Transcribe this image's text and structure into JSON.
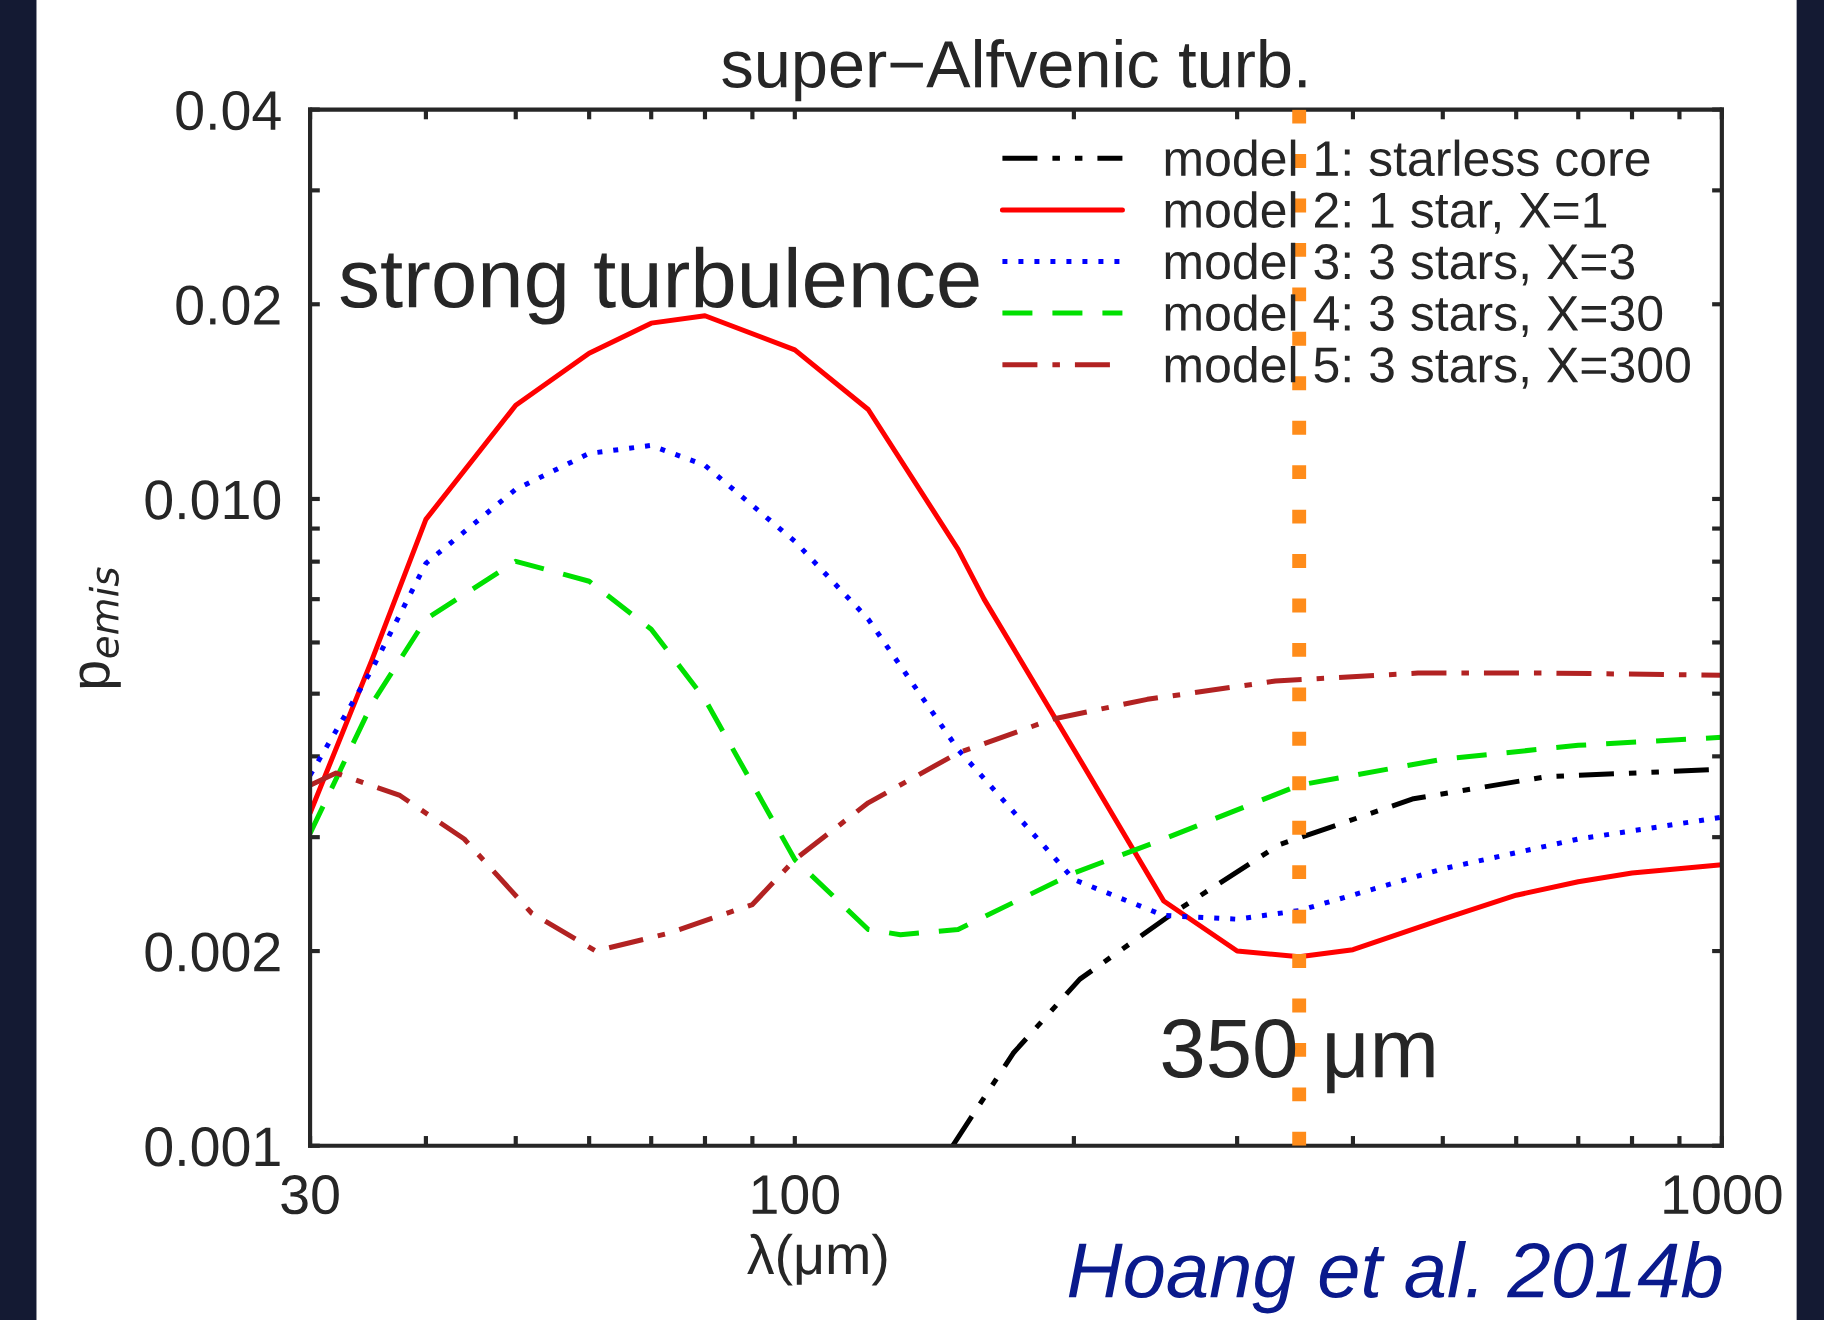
{
  "chart_data": {
    "type": "line",
    "title": "super−Alfvenic turb.",
    "xlabel": "λ(μm)",
    "ylabel": "p$_{emis}$",
    "log": "xy",
    "grid": false,
    "legend": "top right",
    "annotations": [
      "strong turbulence",
      "Hoang et al. 2014b"
    ],
    "xlim": [
      30,
      1000
    ],
    "ylim": [
      0.001,
      0.04
    ],
    "xticks": [
      30,
      {
        "value": 40,
        "label": null
      },
      {
        "value": 50,
        "label": null
      },
      {
        "value": 60,
        "label": null
      },
      {
        "value": 70,
        "label": null
      },
      {
        "value": 80,
        "label": null
      },
      {
        "value": 90,
        "label": null
      },
      100,
      {
        "value": 200,
        "label": null
      },
      {
        "value": 300,
        "label": null
      },
      {
        "value": 400,
        "label": null
      },
      {
        "value": 500,
        "label": null
      },
      {
        "value": 600,
        "label": null
      },
      {
        "value": 700,
        "label": null
      },
      {
        "value": 800,
        "label": null
      },
      {
        "value": 900,
        "label": null
      },
      1000
    ],
    "yticks": [
      0.001,
      0.002,
      {
        "value": 0.003,
        "label": null
      },
      {
        "value": 0.004,
        "label": null
      },
      {
        "value": 0.005,
        "label": null
      },
      {
        "value": 0.006,
        "label": null
      },
      {
        "value": 0.007,
        "label": null
      },
      {
        "value": 0.008,
        "label": null
      },
      {
        "value": 0.009,
        "label": null
      },
      {
        "value": 0.01,
        "label": "0.010"
      },
      0.02,
      {
        "value": 0.03,
        "label": null
      },
      0.04
    ],
    "ref_lines": [
      {
        "axis": "x",
        "value": 350,
        "label": "350 μm",
        "color": "#ff8c1a",
        "line_style": "dotted"
      }
    ],
    "series": [
      {
        "name": "model 1: starless core",
        "color": "#000000",
        "line_style": "dashdotdot",
        "x": [
          148,
          172,
          203,
          256,
          333,
          465,
          646,
          1000
        ],
        "values": [
          0.001,
          0.00139,
          0.00181,
          0.00229,
          0.00292,
          0.00344,
          0.00372,
          0.00382
        ]
      },
      {
        "name": "model 2: 1 star, X=1",
        "color": "#ff0000",
        "line_style": "solid",
        "x": [
          30,
          35,
          40,
          50,
          60,
          70,
          80,
          100,
          120,
          150,
          160,
          200,
          250,
          300,
          350,
          400,
          500,
          600,
          700,
          800,
          1000
        ],
        "values": [
          0.00327,
          0.00565,
          0.0093,
          0.01396,
          0.0168,
          0.0187,
          0.0192,
          0.017,
          0.01375,
          0.00836,
          0.007,
          0.0041,
          0.00239,
          0.002,
          0.00196,
          0.00201,
          0.00224,
          0.00244,
          0.00256,
          0.00264,
          0.00272
        ]
      },
      {
        "name": "model 3: 3 stars, X=3",
        "color": "#0000ff",
        "line_style": "dotted",
        "x": [
          30,
          35,
          40,
          50,
          60,
          70,
          80,
          100,
          120,
          150,
          200,
          250,
          300,
          350,
          500,
          700,
          1000
        ],
        "values": [
          0.00374,
          0.00546,
          0.00795,
          0.01035,
          0.01176,
          0.0121,
          0.01127,
          0.0086,
          0.00652,
          0.0041,
          0.00258,
          0.00227,
          0.00224,
          0.00231,
          0.00268,
          0.00298,
          0.00322
        ]
      },
      {
        "name": "model 4: 3 stars, X=30",
        "color": "#00e000",
        "line_style": "dashed",
        "x": [
          30,
          35,
          40,
          50,
          60,
          70,
          80,
          100,
          120,
          130,
          150,
          200,
          250,
          350,
          500,
          700,
          1000
        ],
        "values": [
          0.00304,
          0.00483,
          0.00652,
          0.00801,
          0.00746,
          0.00629,
          0.0049,
          0.00277,
          0.00216,
          0.00212,
          0.00216,
          0.00264,
          0.00298,
          0.00361,
          0.00396,
          0.00416,
          0.00428
        ]
      },
      {
        "name": "model 5: 3 stars, X=300",
        "color": "#b22222",
        "line_style": "dashdot",
        "x": [
          30,
          32,
          37.5,
          44,
          52,
          61,
          73,
          90,
          100,
          120,
          150,
          190,
          240,
          330,
          470,
          650,
          1000
        ],
        "values": [
          0.00361,
          0.00377,
          0.00348,
          0.00298,
          0.00229,
          0.002,
          0.00213,
          0.00236,
          0.00277,
          0.00339,
          0.00405,
          0.00457,
          0.0049,
          0.00523,
          0.00538,
          0.00538,
          0.00534
        ]
      }
    ]
  }
}
